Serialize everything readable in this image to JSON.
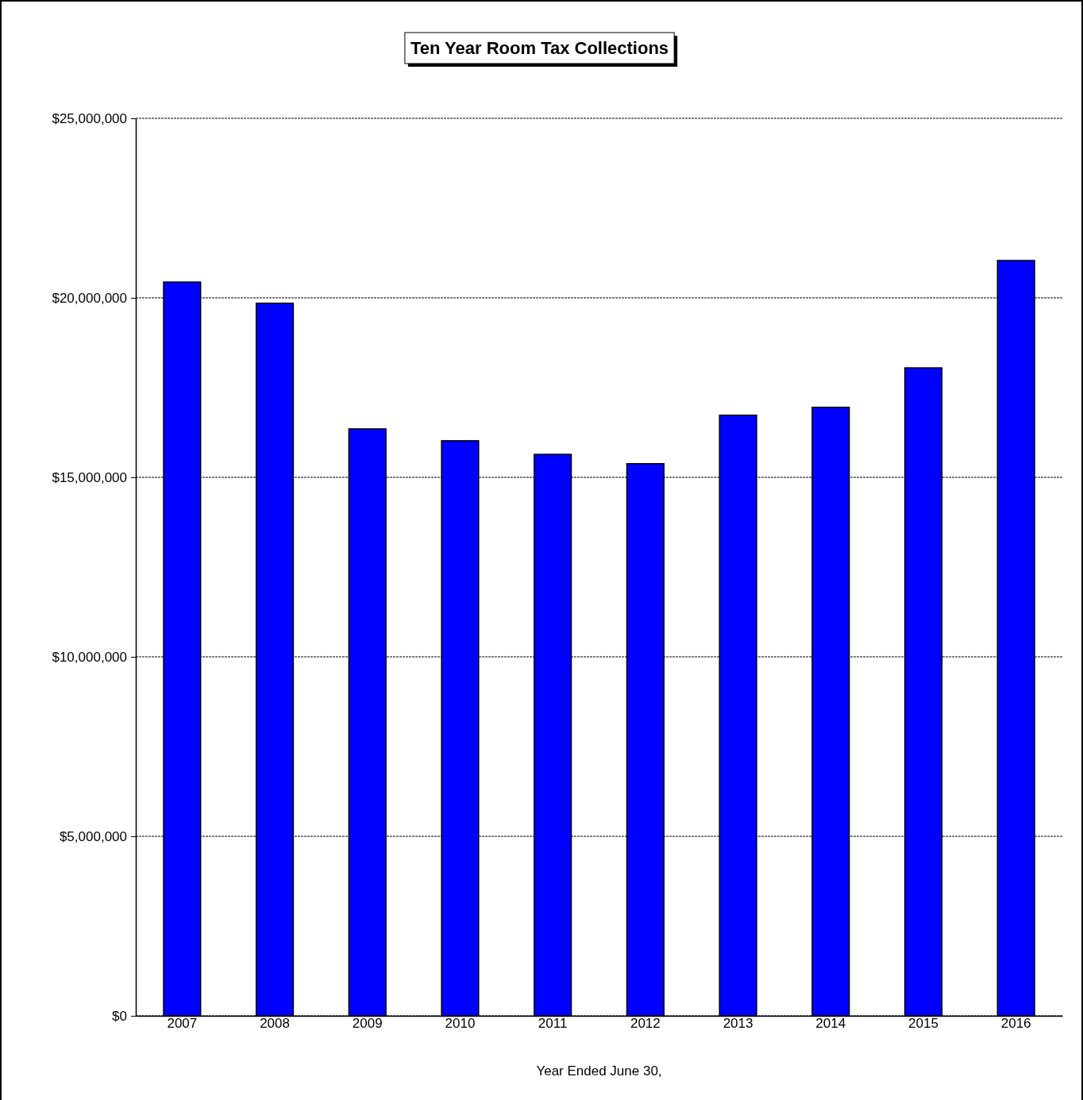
{
  "chart_data": {
    "type": "bar",
    "title": "Ten Year Room Tax Collections",
    "xlabel": "Year Ended June 30,",
    "categories": [
      "2007",
      "2008",
      "2009",
      "2010",
      "2011",
      "2012",
      "2013",
      "2014",
      "2015",
      "2016"
    ],
    "values": [
      20440000,
      19850000,
      16350000,
      16020000,
      15640000,
      15380000,
      16730000,
      16950000,
      18050000,
      21040000
    ],
    "color": "#0000ff",
    "ylim": [
      0,
      25000000
    ],
    "yticks": [
      {
        "value": 0,
        "label": "$0"
      },
      {
        "value": 5000000,
        "label": "$5,000,000"
      },
      {
        "value": 10000000,
        "label": "$10,000,000"
      },
      {
        "value": 15000000,
        "label": "$15,000,000"
      },
      {
        "value": 20000000,
        "label": "$20,000,000"
      },
      {
        "value": 25000000,
        "label": "$25,000,000"
      }
    ],
    "grid": "y"
  }
}
